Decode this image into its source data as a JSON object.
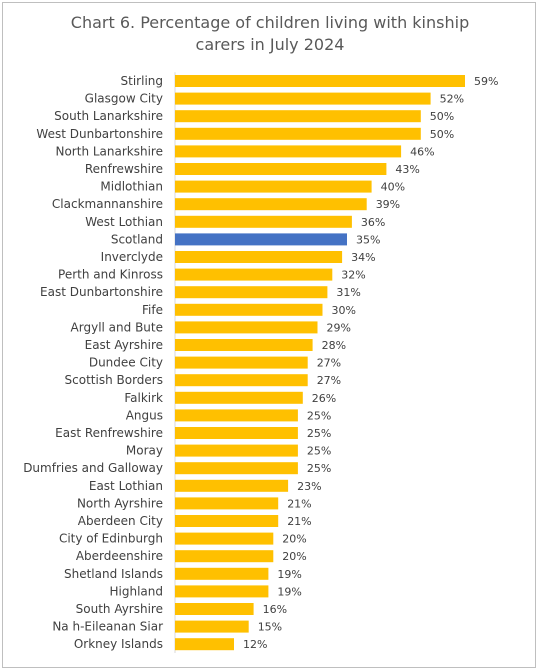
{
  "chart_data": {
    "type": "bar",
    "orientation": "horizontal",
    "title_line1": "Chart 6. Percentage of children living with kinship",
    "title_line2": "carers in July 2024",
    "xlim": [
      0,
      60
    ],
    "grid": false,
    "legend": "none",
    "colors": {
      "bar": "#FFC000",
      "highlight": "#4472C4"
    },
    "highlight_category": "Scotland",
    "categories": [
      "Stirling",
      "Glasgow City",
      "South Lanarkshire",
      "West Dunbartonshire",
      "North Lanarkshire",
      "Renfrewshire",
      "Midlothian",
      "Clackmannanshire",
      "West Lothian",
      "Scotland",
      "Inverclyde",
      "Perth and Kinross",
      "East Dunbartonshire",
      "Fife",
      "Argyll and Bute",
      "East Ayrshire",
      "Dundee City",
      "Scottish Borders",
      "Falkirk",
      "Angus",
      "East Renfrewshire",
      "Moray",
      "Dumfries and Galloway",
      "East Lothian",
      "North Ayrshire",
      "Aberdeen City",
      "City of Edinburgh",
      "Aberdeenshire",
      "Shetland Islands",
      "Highland",
      "South Ayrshire",
      "Na h-Eileanan Siar",
      "Orkney Islands"
    ],
    "values": [
      59,
      52,
      50,
      50,
      46,
      43,
      40,
      39,
      36,
      35,
      34,
      32,
      31,
      30,
      29,
      28,
      27,
      27,
      26,
      25,
      25,
      25,
      25,
      23,
      21,
      21,
      20,
      20,
      19,
      19,
      16,
      15,
      12
    ],
    "value_labels": [
      "59%",
      "52%",
      "50%",
      "50%",
      "46%",
      "43%",
      "40%",
      "39%",
      "36%",
      "35%",
      "34%",
      "32%",
      "31%",
      "30%",
      "29%",
      "28%",
      "27%",
      "27%",
      "26%",
      "25%",
      "25%",
      "25%",
      "25%",
      "23%",
      "21%",
      "21%",
      "20%",
      "20%",
      "19%",
      "19%",
      "16%",
      "15%",
      "12%"
    ]
  }
}
